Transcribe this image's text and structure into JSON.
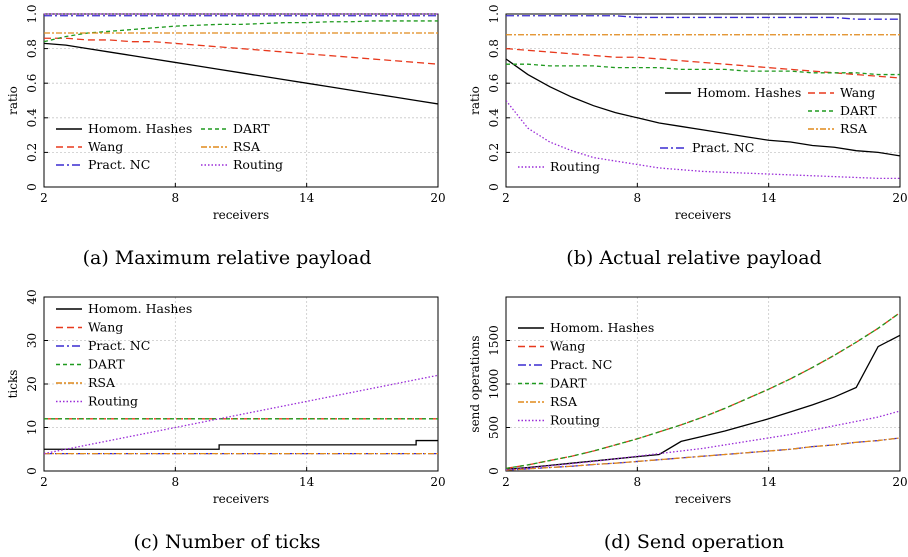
{
  "colors": {
    "hashes": "#000000",
    "wang": "#e8391d",
    "pract": "#3a2bd0",
    "dart": "#1f9a1f",
    "rsa": "#e08a1c",
    "routing": "#9a2bd8"
  },
  "chart_data": [
    {
      "id": "a",
      "type": "line",
      "caption": "(a) Maximum relative payload",
      "xlabel": "receivers",
      "ylabel": "ratio",
      "xlim": [
        2,
        20
      ],
      "ylim": [
        0,
        1
      ],
      "xticks": [
        2,
        8,
        14,
        20
      ],
      "yticks": [
        0,
        0.2,
        0.4,
        0.6,
        0.8,
        1
      ],
      "ytick_labels": [
        "0",
        "0.2",
        "0.4",
        "0.6",
        "0.8",
        "1.0"
      ],
      "grid": true,
      "legend_position": "bottom-left",
      "x": [
        2,
        3,
        4,
        5,
        6,
        7,
        8,
        9,
        10,
        11,
        12,
        13,
        14,
        15,
        16,
        17,
        18,
        19,
        20
      ],
      "series": [
        {
          "name": "Homom. Hashes",
          "color_key": "hashes",
          "dash": "",
          "values": [
            0.83,
            0.82,
            0.8,
            0.78,
            0.76,
            0.74,
            0.72,
            0.7,
            0.68,
            0.66,
            0.64,
            0.62,
            0.6,
            0.58,
            0.56,
            0.54,
            0.52,
            0.5,
            0.48
          ]
        },
        {
          "name": "Wang",
          "color_key": "wang",
          "dash": "7 4",
          "values": [
            0.86,
            0.86,
            0.85,
            0.85,
            0.84,
            0.84,
            0.83,
            0.82,
            0.81,
            0.8,
            0.79,
            0.78,
            0.77,
            0.76,
            0.75,
            0.74,
            0.73,
            0.72,
            0.71
          ]
        },
        {
          "name": "Pract. NC",
          "color_key": "pract",
          "dash": "8 3 2 3",
          "values": [
            0.99,
            0.99,
            0.99,
            0.99,
            0.99,
            0.99,
            0.99,
            0.99,
            0.99,
            0.99,
            0.99,
            0.99,
            0.99,
            0.99,
            0.99,
            0.99,
            0.99,
            0.99,
            0.99
          ]
        },
        {
          "name": "DART",
          "color_key": "dart",
          "dash": "4 3",
          "values": [
            0.84,
            0.87,
            0.89,
            0.9,
            0.91,
            0.92,
            0.93,
            0.935,
            0.94,
            0.94,
            0.945,
            0.95,
            0.95,
            0.955,
            0.955,
            0.96,
            0.96,
            0.96,
            0.96
          ]
        },
        {
          "name": "RSA",
          "color_key": "rsa",
          "dash": "6 2 2 2",
          "values": [
            0.89,
            0.89,
            0.89,
            0.89,
            0.89,
            0.89,
            0.89,
            0.89,
            0.89,
            0.89,
            0.89,
            0.89,
            0.89,
            0.89,
            0.89,
            0.89,
            0.89,
            0.89,
            0.89
          ]
        },
        {
          "name": "Routing",
          "color_key": "routing",
          "dash": "1.5 2",
          "values": [
            1.0,
            1.0,
            1.0,
            1.0,
            1.0,
            1.0,
            1.0,
            1.0,
            1.0,
            1.0,
            1.0,
            1.0,
            1.0,
            1.0,
            1.0,
            1.0,
            1.0,
            1.0,
            1.0
          ]
        }
      ]
    },
    {
      "id": "b",
      "type": "line",
      "caption": "(b) Actual relative payload",
      "xlabel": "receivers",
      "ylabel": "ratio",
      "xlim": [
        2,
        20
      ],
      "ylim": [
        0,
        1
      ],
      "xticks": [
        2,
        8,
        14,
        20
      ],
      "yticks": [
        0,
        0.2,
        0.4,
        0.6,
        0.8,
        1
      ],
      "ytick_labels": [
        "0",
        "0.2",
        "0.4",
        "0.6",
        "0.8",
        "1.0"
      ],
      "grid": true,
      "legend_position": "center-right",
      "x": [
        2,
        3,
        4,
        5,
        6,
        7,
        8,
        9,
        10,
        11,
        12,
        13,
        14,
        15,
        16,
        17,
        18,
        19,
        20
      ],
      "series": [
        {
          "name": "Homom. Hashes",
          "color_key": "hashes",
          "dash": "",
          "values": [
            0.74,
            0.65,
            0.58,
            0.52,
            0.47,
            0.43,
            0.4,
            0.37,
            0.35,
            0.33,
            0.31,
            0.29,
            0.27,
            0.26,
            0.24,
            0.23,
            0.21,
            0.2,
            0.18
          ]
        },
        {
          "name": "Wang",
          "color_key": "wang",
          "dash": "7 4",
          "values": [
            0.8,
            0.79,
            0.78,
            0.77,
            0.76,
            0.75,
            0.75,
            0.74,
            0.73,
            0.72,
            0.71,
            0.7,
            0.69,
            0.68,
            0.67,
            0.66,
            0.65,
            0.64,
            0.63
          ]
        },
        {
          "name": "DART",
          "color_key": "dart",
          "dash": "4 3",
          "values": [
            0.71,
            0.71,
            0.7,
            0.7,
            0.7,
            0.69,
            0.69,
            0.69,
            0.68,
            0.68,
            0.68,
            0.67,
            0.67,
            0.67,
            0.66,
            0.66,
            0.66,
            0.65,
            0.65
          ]
        },
        {
          "name": "RSA",
          "color_key": "rsa",
          "dash": "6 2 2 2",
          "values": [
            0.88,
            0.88,
            0.88,
            0.88,
            0.88,
            0.88,
            0.88,
            0.88,
            0.88,
            0.88,
            0.88,
            0.88,
            0.88,
            0.88,
            0.88,
            0.88,
            0.88,
            0.88,
            0.88
          ]
        },
        {
          "name": "Pract. NC",
          "color_key": "pract",
          "dash": "8 3 2 3",
          "values": [
            0.99,
            0.99,
            0.99,
            0.99,
            0.99,
            0.99,
            0.98,
            0.98,
            0.98,
            0.98,
            0.98,
            0.98,
            0.98,
            0.98,
            0.98,
            0.98,
            0.97,
            0.97,
            0.97
          ]
        },
        {
          "name": "Routing",
          "color_key": "routing",
          "dash": "1.5 2",
          "values": [
            0.5,
            0.34,
            0.26,
            0.21,
            0.17,
            0.15,
            0.13,
            0.11,
            0.1,
            0.09,
            0.085,
            0.08,
            0.075,
            0.07,
            0.065,
            0.06,
            0.055,
            0.05,
            0.05
          ]
        }
      ]
    },
    {
      "id": "c",
      "type": "line",
      "caption": "(c) Number of ticks",
      "xlabel": "receivers",
      "ylabel": "ticks",
      "xlim": [
        2,
        20
      ],
      "ylim": [
        0,
        40
      ],
      "xticks": [
        2,
        8,
        14,
        20
      ],
      "yticks": [
        0,
        10,
        20,
        30,
        40
      ],
      "ytick_labels": [
        "0",
        "10",
        "20",
        "30",
        "40"
      ],
      "grid": true,
      "legend_position": "top-left",
      "x": [
        2,
        3,
        4,
        5,
        6,
        7,
        8,
        9,
        10,
        11,
        12,
        13,
        14,
        15,
        16,
        17,
        18,
        19,
        20
      ],
      "series": [
        {
          "name": "Homom. Hashes",
          "color_key": "hashes",
          "dash": "",
          "step": true,
          "values": [
            5,
            5,
            5,
            5,
            5,
            5,
            5,
            5,
            6,
            6,
            6,
            6,
            6,
            6,
            6,
            6,
            6,
            7,
            7
          ]
        },
        {
          "name": "Wang",
          "color_key": "wang",
          "dash": "7 4",
          "values": [
            12,
            12,
            12,
            12,
            12,
            12,
            12,
            12,
            12,
            12,
            12,
            12,
            12,
            12,
            12,
            12,
            12,
            12,
            12
          ]
        },
        {
          "name": "Pract. NC",
          "color_key": "pract",
          "dash": "8 3 2 3",
          "values": [
            4,
            4,
            4,
            4,
            4,
            4,
            4,
            4,
            4,
            4,
            4,
            4,
            4,
            4,
            4,
            4,
            4,
            4,
            4
          ]
        },
        {
          "name": "DART",
          "color_key": "dart",
          "dash": "4 3",
          "values": [
            12,
            12,
            12,
            12,
            12,
            12,
            12,
            12,
            12,
            12,
            12,
            12,
            12,
            12,
            12,
            12,
            12,
            12,
            12
          ]
        },
        {
          "name": "RSA",
          "color_key": "rsa",
          "dash": "6 2 2 2",
          "values": [
            4,
            4,
            4,
            4,
            4,
            4,
            4,
            4,
            4,
            4,
            4,
            4,
            4,
            4,
            4,
            4,
            4,
            4,
            4
          ]
        },
        {
          "name": "Routing",
          "color_key": "routing",
          "dash": "1.5 2",
          "values": [
            4,
            5,
            6,
            7,
            8,
            9,
            10,
            11,
            12,
            13,
            14,
            15,
            16,
            17,
            18,
            19,
            20,
            21,
            22
          ]
        }
      ]
    },
    {
      "id": "d",
      "type": "line",
      "caption": "(d) Send operation",
      "xlabel": "receivers",
      "ylabel": "send operations",
      "xlim": [
        2,
        20
      ],
      "ylim": [
        0,
        2000
      ],
      "xticks": [
        2,
        8,
        14,
        20
      ],
      "yticks": [
        0,
        500,
        1000,
        1500
      ],
      "ytick_labels": [
        "0",
        "500",
        "1000",
        "1500"
      ],
      "grid": true,
      "legend_position": "top-left",
      "x": [
        2,
        3,
        4,
        5,
        6,
        7,
        8,
        9,
        10,
        11,
        12,
        13,
        14,
        15,
        16,
        17,
        18,
        19,
        20
      ],
      "series": [
        {
          "name": "Homom. Hashes",
          "color_key": "hashes",
          "dash": "",
          "values": [
            20,
            40,
            65,
            90,
            115,
            140,
            165,
            190,
            340,
            400,
            460,
            530,
            600,
            680,
            760,
            850,
            960,
            1430,
            1560
          ]
        },
        {
          "name": "Wang",
          "color_key": "wang",
          "dash": "7 4",
          "values": [
            30,
            70,
            120,
            170,
            230,
            300,
            370,
            450,
            530,
            620,
            720,
            830,
            940,
            1060,
            1190,
            1330,
            1480,
            1640,
            1820
          ]
        },
        {
          "name": "Pract. NC",
          "color_key": "pract",
          "dash": "8 3 2 3",
          "values": [
            10,
            25,
            40,
            55,
            75,
            90,
            110,
            130,
            150,
            170,
            190,
            210,
            230,
            250,
            280,
            300,
            330,
            350,
            380
          ]
        },
        {
          "name": "DART",
          "color_key": "dart",
          "dash": "4 3",
          "values": [
            30,
            70,
            120,
            170,
            230,
            300,
            370,
            450,
            530,
            620,
            720,
            830,
            940,
            1060,
            1190,
            1330,
            1480,
            1640,
            1820
          ]
        },
        {
          "name": "RSA",
          "color_key": "rsa",
          "dash": "6 2 2 2",
          "values": [
            10,
            25,
            40,
            55,
            75,
            90,
            110,
            130,
            150,
            170,
            190,
            210,
            230,
            250,
            280,
            300,
            330,
            350,
            380
          ]
        },
        {
          "name": "Routing",
          "color_key": "routing",
          "dash": "1.5 2",
          "values": [
            15,
            35,
            60,
            85,
            110,
            140,
            170,
            200,
            230,
            260,
            300,
            340,
            380,
            420,
            470,
            520,
            570,
            620,
            690
          ]
        }
      ]
    }
  ]
}
